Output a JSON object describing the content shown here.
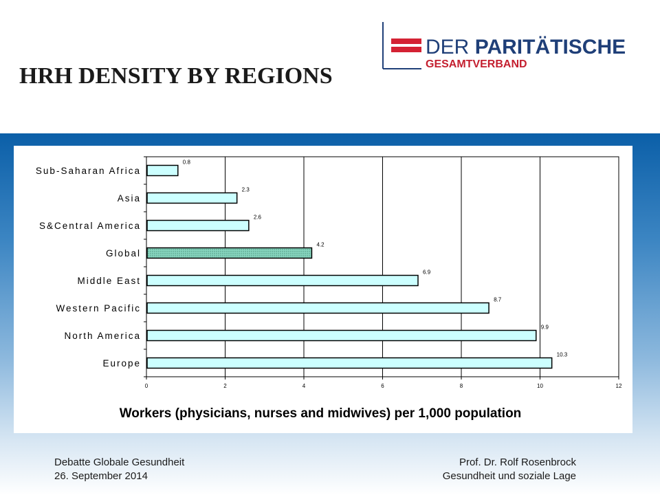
{
  "slide": {
    "title": "HRH DENSITY BY REGIONS"
  },
  "logo": {
    "line1_plain": "DER ",
    "line1_bold": "PARITÄTISCHE",
    "line2": "GESAMTVERBAND",
    "colors": {
      "red": "#d42233",
      "navy": "#1f3f78",
      "text_red": "#c41f2f"
    }
  },
  "footer": {
    "left_line1": "Debatte Globale Gesundheit",
    "left_line2": "26. September 2014",
    "right_line1": "Prof. Dr. Rolf Rosenbrock",
    "right_line2": "Gesundheit und soziale Lage"
  },
  "chart_data": {
    "type": "bar",
    "orientation": "horizontal",
    "categories": [
      "Sub-Saharan Africa",
      "Asia",
      "S&Central America",
      "Global",
      "Middle East",
      "Western Pacific",
      "North America",
      "Europe"
    ],
    "values": [
      0.8,
      2.3,
      2.6,
      4.2,
      6.9,
      8.7,
      9.9,
      10.3
    ],
    "data_labels": [
      "0.8",
      "2.3",
      "2.6",
      "4.2",
      "6.9",
      "8.7",
      "9.9",
      "10.3"
    ],
    "highlight_category": "Global",
    "xlabel": "Workers (physicians, nurses and midwives) per 1,000 population",
    "xlim": [
      0,
      12
    ],
    "xticks": [
      0,
      2,
      4,
      6,
      8,
      10,
      12
    ],
    "grid": "vertical",
    "legend": "none",
    "colors": {
      "bar": "#ccffff",
      "highlight": "#88d7c0",
      "edge": "#000000"
    }
  }
}
